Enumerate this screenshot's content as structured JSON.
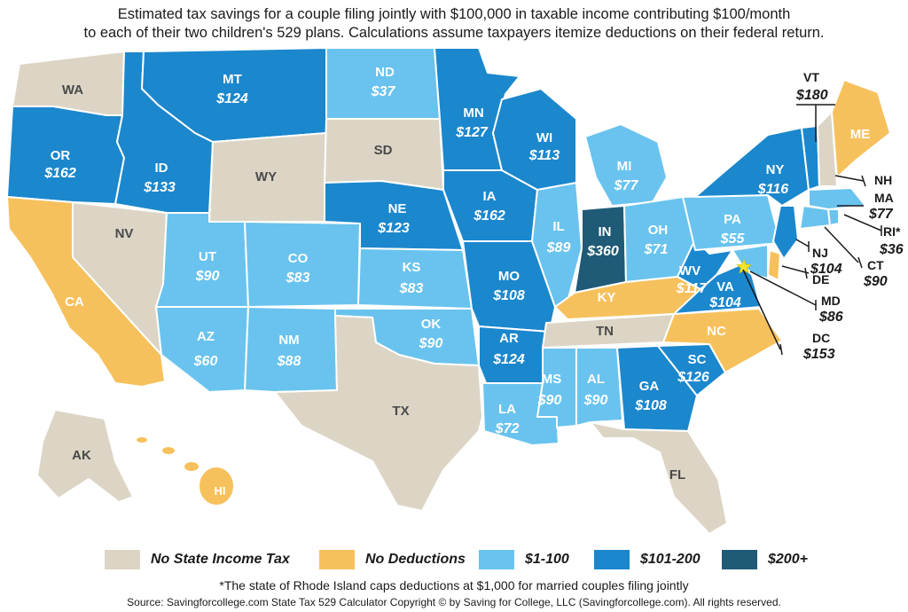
{
  "title": {
    "line1": "Estimated tax savings for a couple filing jointly with $100,000 in taxable income contributing $100/month",
    "line2": "to each of their two children's 529 plans. Calculations assume taxpayers itemize deductions on their federal return."
  },
  "colors": {
    "no_income_tax": "#dcd5c5",
    "no_deductions": "#f6c15c",
    "range_1_100": "#69c3ee",
    "range_101_200": "#1b87cd",
    "range_200_plus": "#1f5a77",
    "border": "#ffffff",
    "star": "#f2e629"
  },
  "legend": [
    {
      "label": "No State Income Tax",
      "category": "no_income_tax"
    },
    {
      "label": "No Deductions",
      "category": "no_deductions"
    },
    {
      "label": "$1-100",
      "category": "range_1_100"
    },
    {
      "label": "$101-200",
      "category": "range_101_200"
    },
    {
      "label": "$200+",
      "category": "range_200_plus"
    }
  ],
  "states": {
    "WA": {
      "abbr": "WA",
      "value": "",
      "category": "no_income_tax"
    },
    "OR": {
      "abbr": "OR",
      "value": "$162",
      "category": "range_101_200"
    },
    "CA": {
      "abbr": "CA",
      "value": "",
      "category": "no_deductions"
    },
    "NV": {
      "abbr": "NV",
      "value": "",
      "category": "no_income_tax"
    },
    "ID": {
      "abbr": "ID",
      "value": "$133",
      "category": "range_101_200"
    },
    "MT": {
      "abbr": "MT",
      "value": "$124",
      "category": "range_101_200"
    },
    "WY": {
      "abbr": "WY",
      "value": "",
      "category": "no_income_tax"
    },
    "UT": {
      "abbr": "UT",
      "value": "$90",
      "category": "range_1_100"
    },
    "AZ": {
      "abbr": "AZ",
      "value": "$60",
      "category": "range_1_100"
    },
    "CO": {
      "abbr": "CO",
      "value": "$83",
      "category": "range_1_100"
    },
    "NM": {
      "abbr": "NM",
      "value": "$88",
      "category": "range_1_100"
    },
    "ND": {
      "abbr": "ND",
      "value": "$37",
      "category": "range_1_100"
    },
    "SD": {
      "abbr": "SD",
      "value": "",
      "category": "no_income_tax"
    },
    "NE": {
      "abbr": "NE",
      "value": "$123",
      "category": "range_101_200"
    },
    "KS": {
      "abbr": "KS",
      "value": "$83",
      "category": "range_1_100"
    },
    "OK": {
      "abbr": "OK",
      "value": "$90",
      "category": "range_1_100"
    },
    "TX": {
      "abbr": "TX",
      "value": "",
      "category": "no_income_tax"
    },
    "MN": {
      "abbr": "MN",
      "value": "$127",
      "category": "range_101_200"
    },
    "IA": {
      "abbr": "IA",
      "value": "$162",
      "category": "range_101_200"
    },
    "MO": {
      "abbr": "MO",
      "value": "$108",
      "category": "range_101_200"
    },
    "AR": {
      "abbr": "AR",
      "value": "$124",
      "category": "range_101_200"
    },
    "LA": {
      "abbr": "LA",
      "value": "$72",
      "category": "range_1_100"
    },
    "WI": {
      "abbr": "WI",
      "value": "$113",
      "category": "range_101_200"
    },
    "IL": {
      "abbr": "IL",
      "value": "$89",
      "category": "range_1_100"
    },
    "MI": {
      "abbr": "MI",
      "value": "$77",
      "category": "range_1_100"
    },
    "IN": {
      "abbr": "IN",
      "value": "$360",
      "category": "range_200_plus"
    },
    "OH": {
      "abbr": "OH",
      "value": "$71",
      "category": "range_1_100"
    },
    "KY": {
      "abbr": "KY",
      "value": "",
      "category": "no_deductions"
    },
    "TN": {
      "abbr": "TN",
      "value": "",
      "category": "no_income_tax"
    },
    "MS": {
      "abbr": "MS",
      "value": "$90",
      "category": "range_1_100"
    },
    "AL": {
      "abbr": "AL",
      "value": "$90",
      "category": "range_1_100"
    },
    "GA": {
      "abbr": "GA",
      "value": "$108",
      "category": "range_101_200"
    },
    "FL": {
      "abbr": "FL",
      "value": "",
      "category": "no_income_tax"
    },
    "SC": {
      "abbr": "SC",
      "value": "$126",
      "category": "range_101_200"
    },
    "NC": {
      "abbr": "NC",
      "value": "",
      "category": "no_deductions"
    },
    "VA": {
      "abbr": "VA",
      "value": "$104",
      "category": "range_101_200"
    },
    "WV": {
      "abbr": "WV",
      "value": "$117",
      "category": "range_101_200"
    },
    "PA": {
      "abbr": "PA",
      "value": "$55",
      "category": "range_1_100"
    },
    "NY": {
      "abbr": "NY",
      "value": "$116",
      "category": "range_101_200"
    },
    "VT": {
      "abbr": "VT",
      "value": "$180",
      "category": "range_101_200"
    },
    "NH": {
      "abbr": "NH",
      "value": "",
      "category": "no_income_tax"
    },
    "ME": {
      "abbr": "ME",
      "value": "",
      "category": "no_deductions"
    },
    "MA": {
      "abbr": "MA",
      "value": "$77",
      "category": "range_1_100"
    },
    "RI": {
      "abbr": "RI*",
      "value": "$36",
      "category": "range_1_100"
    },
    "CT": {
      "abbr": "CT",
      "value": "$90",
      "category": "range_1_100"
    },
    "NJ": {
      "abbr": "NJ",
      "value": "$104",
      "category": "range_101_200"
    },
    "DE": {
      "abbr": "DE",
      "value": "",
      "category": "no_deductions"
    },
    "MD": {
      "abbr": "MD",
      "value": "$86",
      "category": "range_1_100"
    },
    "DC": {
      "abbr": "DC",
      "value": "$153",
      "category": "range_101_200"
    },
    "AK": {
      "abbr": "AK",
      "value": "",
      "category": "no_income_tax"
    },
    "HI": {
      "abbr": "HI",
      "value": "",
      "category": "no_deductions"
    }
  },
  "footnote": "*The state of Rhode Island caps deductions at $1,000 for married couples filing jointly",
  "source": "Source: Savingforcollege.com State Tax 529 Calculator    Copyright ©  by Saving for College, LLC (Savingforcollege.com). All rights reserved."
}
